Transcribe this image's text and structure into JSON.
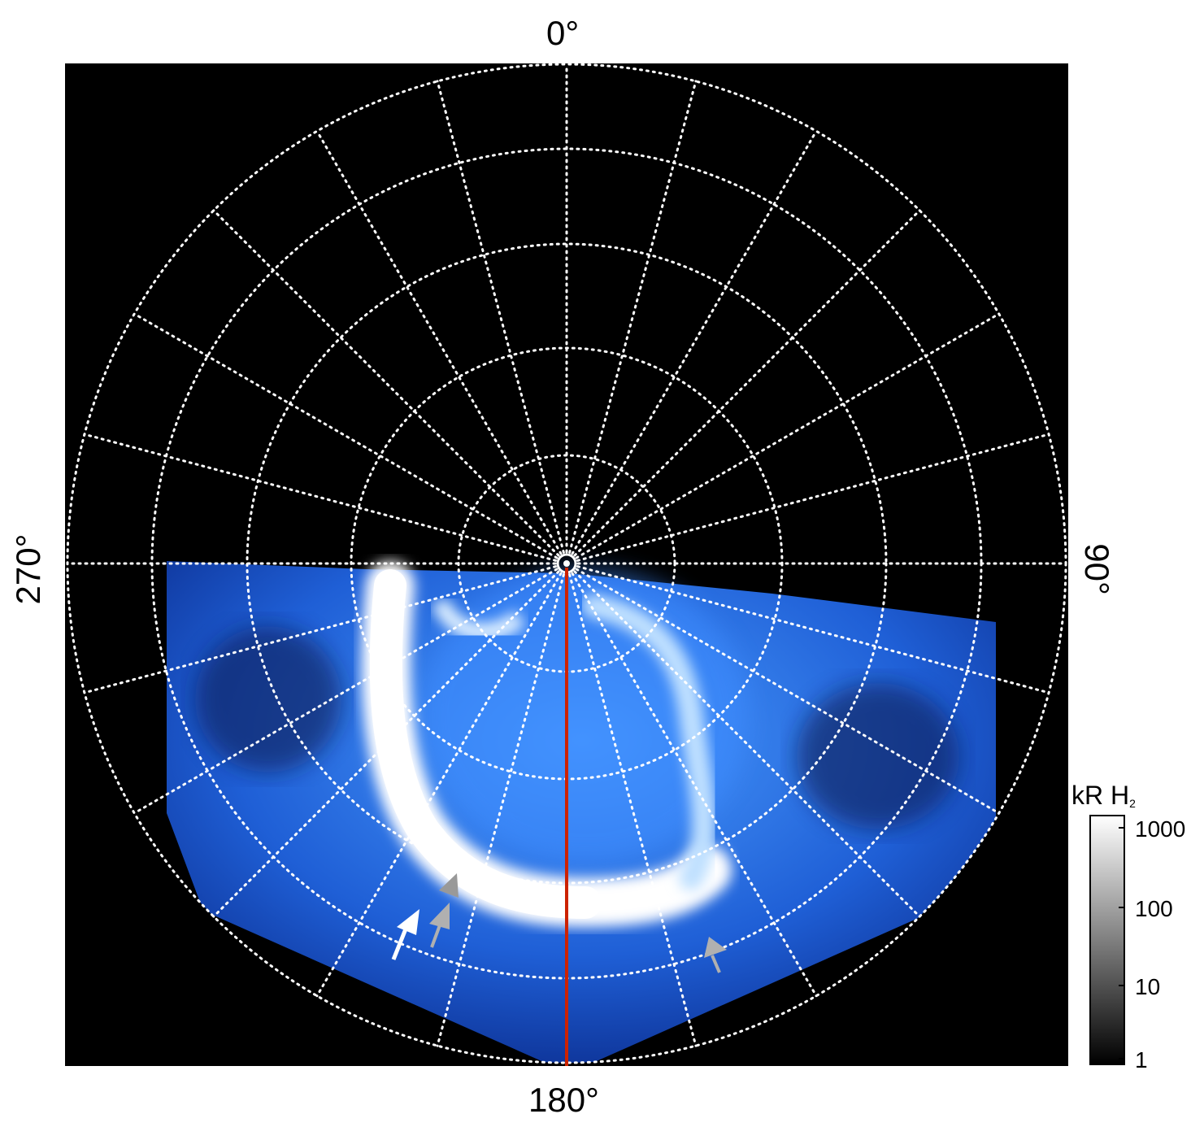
{
  "axes": {
    "top_label": "0°",
    "bottom_label": "180°",
    "left_label": "270°",
    "right_label": "90°"
  },
  "colorbar": {
    "title": "kR H",
    "title_subscript": "2",
    "ticks": [
      "1000",
      "100",
      "10",
      "1"
    ]
  },
  "colors": {
    "background": "#000000",
    "grid": "#ffffff",
    "aurora_dark": "#0a2a8a",
    "aurora_mid": "#2f7fff",
    "aurora_bright": "#9fd0ff",
    "aurora_peak": "#ffffff",
    "meridian_line": "#cc2200",
    "arrow_white": "#ffffff",
    "arrow_grey": "#b0b0b0"
  }
}
